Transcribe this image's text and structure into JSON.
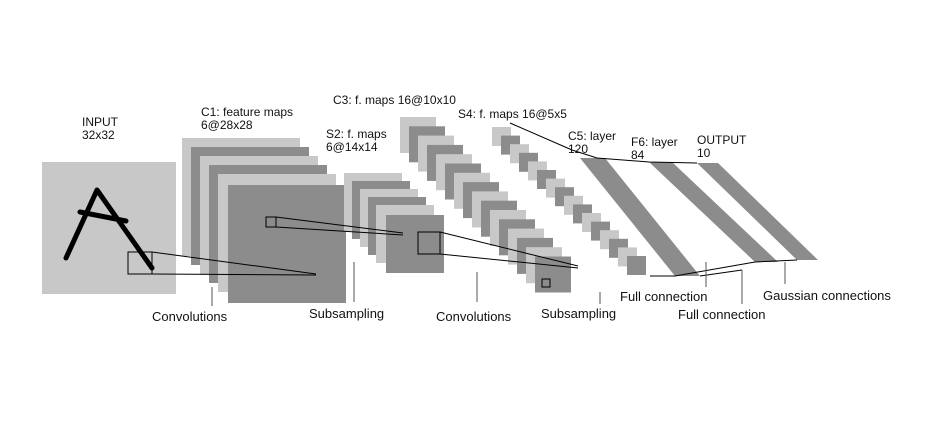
{
  "layers": {
    "input": {
      "line1": "INPUT",
      "line2": "32x32"
    },
    "c1": {
      "line1": "C1: feature maps",
      "line2": "6@28x28"
    },
    "s2": {
      "line1": "S2: f. maps",
      "line2": "6@14x14"
    },
    "c3": {
      "line1": "C3: f. maps 16@10x10"
    },
    "s4": {
      "line1": "S4: f. maps 16@5x5"
    },
    "c5": {
      "line1": "C5: layer",
      "line2": "120"
    },
    "f6": {
      "line1": "F6: layer",
      "line2": "84"
    },
    "output": {
      "line1": "OUTPUT",
      "line2": "10"
    }
  },
  "operations": {
    "op1": "Convolutions",
    "op2": "Subsampling",
    "op3": "Convolutions",
    "op4": "Subsampling",
    "op5": "Full connection",
    "op6": "Full connection",
    "op7": "Gaussian connections"
  },
  "colors": {
    "input_bg": "#c8c8c8",
    "map_dark": "#8c8c8c",
    "map_light": "#c8c8c8",
    "stroke": "#000000"
  }
}
